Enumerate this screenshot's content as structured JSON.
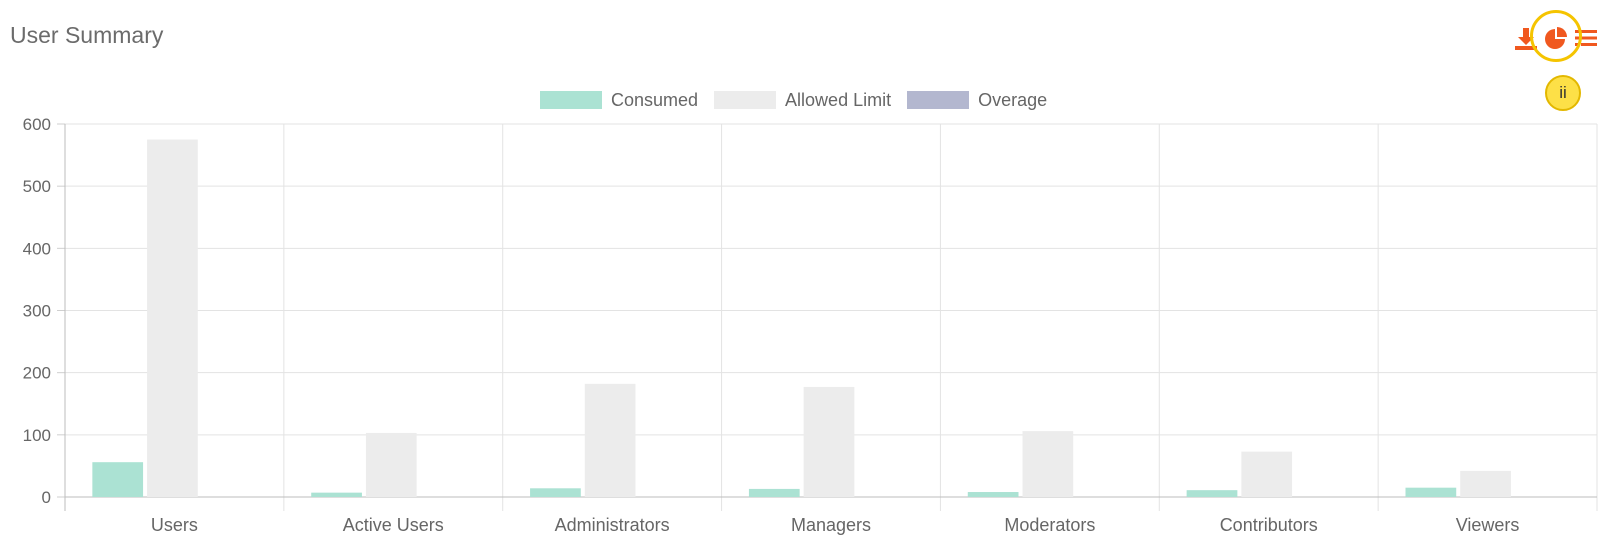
{
  "panel": {
    "title": "User Summary"
  },
  "toolbar": {
    "buttons": [
      {
        "name": "download-icon",
        "color": "#f0581f"
      },
      {
        "name": "pie-chart-icon",
        "color": "#f0581f"
      },
      {
        "name": "list-icon",
        "color": "#f0581f"
      }
    ],
    "highlight_color": "#f5c400"
  },
  "hint_badge": {
    "label": "ii"
  },
  "chart_data": {
    "type": "bar",
    "categories": [
      "Users",
      "Active Users",
      "Administrators",
      "Managers",
      "Moderators",
      "Contributors",
      "Viewers"
    ],
    "series": [
      {
        "name": "Consumed",
        "color": "#abe2d3",
        "values": [
          56,
          7,
          14,
          13,
          8,
          11,
          15
        ]
      },
      {
        "name": "Allowed Limit",
        "color": "#ececec",
        "values": [
          575,
          103,
          182,
          177,
          106,
          73,
          42
        ]
      },
      {
        "name": "Overage",
        "color": "#b3b7cf",
        "values": [
          0,
          0,
          0,
          0,
          0,
          0,
          0
        ]
      }
    ],
    "ylim": [
      0,
      600
    ],
    "yticks": [
      0,
      100,
      200,
      300,
      400,
      500,
      600
    ],
    "grid": true,
    "legend": "top-center"
  }
}
